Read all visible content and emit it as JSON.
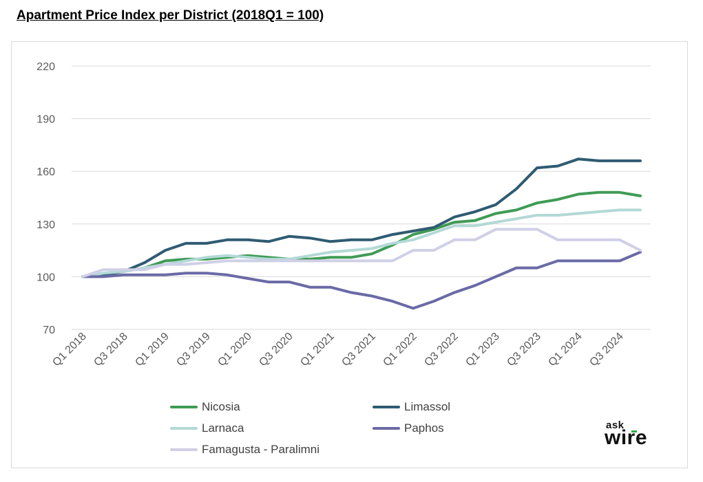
{
  "page": {
    "title": "Apartment Price Index per District (2018Q1 = 100)"
  },
  "chart_data": {
    "type": "line",
    "title": "Apartment Price Index per District (2018Q1 = 100)",
    "xlabel": "",
    "ylabel": "",
    "ylim": [
      70,
      220
    ],
    "yticks": [
      70,
      100,
      130,
      160,
      190,
      220
    ],
    "grid": true,
    "legend_position": "bottom",
    "x": [
      "Q1 2018",
      "Q2 2018",
      "Q3 2018",
      "Q4 2018",
      "Q1 2019",
      "Q2 2019",
      "Q3 2019",
      "Q4 2019",
      "Q1 2020",
      "Q2 2020",
      "Q3 2020",
      "Q4 2020",
      "Q1 2021",
      "Q2 2021",
      "Q3 2021",
      "Q4 2021",
      "Q1 2022",
      "Q2 2022",
      "Q3 2022",
      "Q4 2022",
      "Q1 2023",
      "Q2 2023",
      "Q3 2023",
      "Q4 2023",
      "Q1 2024",
      "Q2 2024",
      "Q3 2024",
      "Q4 2024"
    ],
    "x_tick_labels": [
      "Q1 2018",
      "Q3 2018",
      "Q1 2019",
      "Q3 2019",
      "Q1 2020",
      "Q3 2020",
      "Q1 2021",
      "Q3 2021",
      "Q1 2022",
      "Q3 2022",
      "Q1 2023",
      "Q3 2023",
      "Q1 2024",
      "Q3 2024"
    ],
    "series": [
      {
        "name": "Nicosia",
        "color": "#3f9b56",
        "values": [
          100,
          101,
          103,
          105,
          109,
          110,
          110,
          111,
          112,
          111,
          110,
          110,
          111,
          111,
          113,
          118,
          124,
          127,
          131,
          132,
          136,
          138,
          142,
          144,
          147,
          148,
          148,
          146
        ]
      },
      {
        "name": "Limassol",
        "color": "#2f5b73",
        "values": [
          100,
          101,
          103,
          108,
          115,
          119,
          119,
          121,
          121,
          120,
          123,
          122,
          120,
          121,
          121,
          124,
          126,
          128,
          134,
          137,
          141,
          150,
          162,
          163,
          167,
          166,
          166,
          166
        ]
      },
      {
        "name": "Larnaca",
        "color": "#b3d9d6",
        "values": [
          100,
          102,
          103,
          105,
          107,
          109,
          111,
          112,
          111,
          110,
          110,
          112,
          114,
          115,
          116,
          119,
          121,
          125,
          129,
          129,
          131,
          133,
          135,
          135,
          136,
          137,
          138,
          138
        ]
      },
      {
        "name": "Paphos",
        "color": "#6a6aa6",
        "values": [
          100,
          100,
          101,
          101,
          101,
          102,
          102,
          101,
          99,
          97,
          97,
          94,
          94,
          91,
          89,
          86,
          82,
          86,
          91,
          95,
          100,
          105,
          105,
          109,
          109,
          109,
          109,
          114
        ]
      },
      {
        "name": "Famagusta - Paralimni",
        "color": "#cfd0e6",
        "values": [
          100,
          104,
          104,
          104,
          107,
          107,
          108,
          109,
          109,
          109,
          109,
          109,
          109,
          109,
          109,
          109,
          115,
          115,
          121,
          121,
          127,
          127,
          127,
          121,
          121,
          121,
          121,
          115
        ]
      }
    ]
  },
  "logo": {
    "ask": "ask",
    "wire": "wire",
    "accent_color": "#2ea84a"
  }
}
